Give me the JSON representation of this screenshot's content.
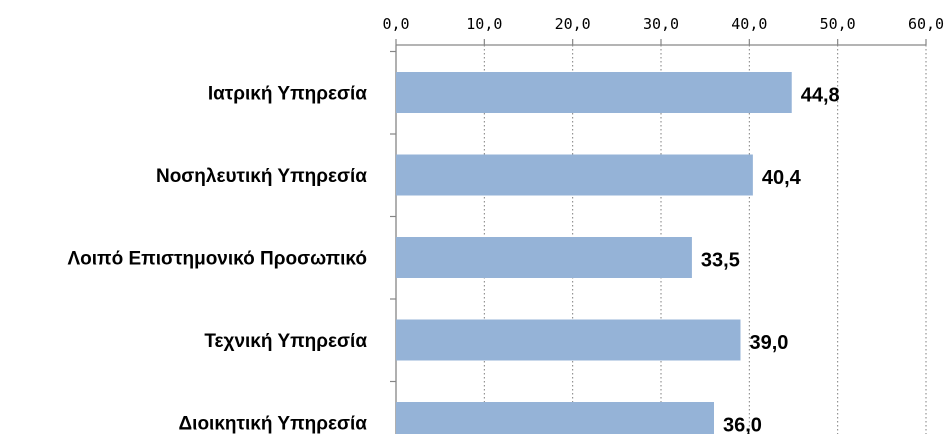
{
  "chart_data": {
    "type": "bar",
    "orientation": "horizontal",
    "categories": [
      "Ιατρική Υπηρεσία",
      "Νοσηλευτική Υπηρεσία",
      "Λοιπό Επιστημονικό  Προσωπικό",
      "Τεχνική Υπηρεσία",
      "Διοικητική Υπηρεσία"
    ],
    "values": [
      44.8,
      40.4,
      33.5,
      39.0,
      36.0
    ],
    "value_labels": [
      "44,8",
      "40,4",
      "33,5",
      "39,0",
      "36,0"
    ],
    "xlim": [
      0,
      60
    ],
    "x_ticks": [
      0,
      10,
      20,
      30,
      40,
      50,
      60
    ],
    "x_tick_labels": [
      "0,0",
      "10,0",
      "20,0",
      "30,0",
      "40,0",
      "50,0",
      "60,0"
    ],
    "x_axis_position": "top",
    "grid": "vertical dotted",
    "bar_color": "#95b3d7",
    "title": "",
    "xlabel": "",
    "ylabel": ""
  }
}
